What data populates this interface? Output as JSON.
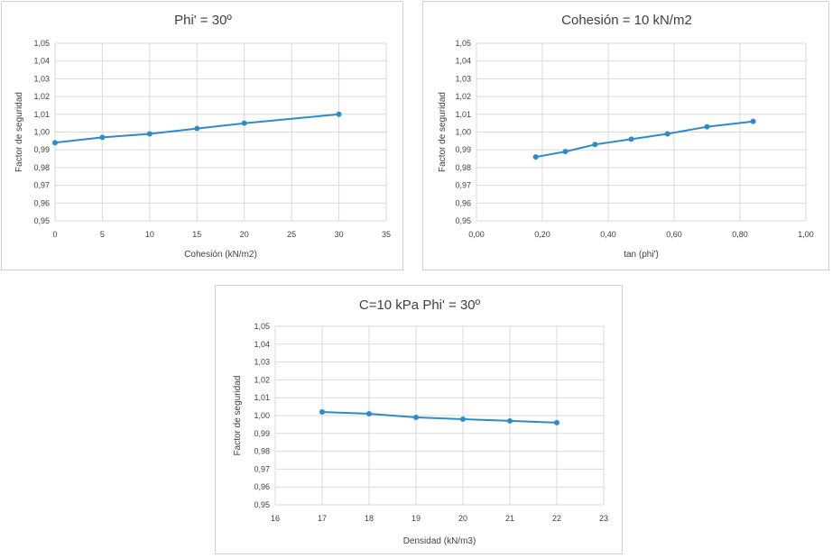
{
  "chart_data": [
    {
      "type": "line",
      "title": "Phi' = 30º",
      "xlabel": "Cohesión (kN/m2)",
      "ylabel": "Factor de seguridad",
      "xlim": [
        0,
        35
      ],
      "ylim": [
        0.95,
        1.05
      ],
      "xticks": [
        "0",
        "5",
        "10",
        "15",
        "20",
        "25",
        "30",
        "35"
      ],
      "yticks": [
        "0,95",
        "0,96",
        "0,97",
        "0,98",
        "0,99",
        "1,00",
        "1,01",
        "1,02",
        "1,03",
        "1,04",
        "1,05"
      ],
      "grid": true,
      "series": [
        {
          "x": [
            0,
            5,
            10,
            15,
            20,
            30
          ],
          "y": [
            0.994,
            0.997,
            0.999,
            1.002,
            1.005,
            1.01
          ]
        }
      ]
    },
    {
      "type": "line",
      "title": "Cohesión = 10 kN/m2",
      "xlabel": "tan (phi')",
      "ylabel": "Factor de seguridad",
      "xlim": [
        0,
        1
      ],
      "ylim": [
        0.95,
        1.05
      ],
      "xticks": [
        "0,00",
        "0,20",
        "0,40",
        "0,60",
        "0,80",
        "1,00"
      ],
      "yticks": [
        "0,95",
        "0,96",
        "0,97",
        "0,98",
        "0,99",
        "1,00",
        "1,01",
        "1,02",
        "1,03",
        "1,04",
        "1,05"
      ],
      "grid": true,
      "series": [
        {
          "x": [
            0.18,
            0.27,
            0.36,
            0.47,
            0.58,
            0.7,
            0.84
          ],
          "y": [
            0.986,
            0.989,
            0.993,
            0.996,
            0.999,
            1.003,
            1.006
          ]
        }
      ]
    },
    {
      "type": "line",
      "title": "C=10 kPa  Phi' = 30º",
      "xlabel": "Densidad (kN/m3)",
      "ylabel": "Factor de seguridad",
      "xlim": [
        16,
        23
      ],
      "ylim": [
        0.95,
        1.05
      ],
      "xticks": [
        "16",
        "17",
        "18",
        "19",
        "20",
        "21",
        "22",
        "23"
      ],
      "yticks": [
        "0,95",
        "0,96",
        "0,97",
        "0,98",
        "0,99",
        "1,00",
        "1,01",
        "1,02",
        "1,03",
        "1,04",
        "1,05"
      ],
      "grid": true,
      "series": [
        {
          "x": [
            17,
            18,
            19,
            20,
            21,
            22
          ],
          "y": [
            1.002,
            1.001,
            0.999,
            0.998,
            0.997,
            0.996
          ]
        }
      ]
    }
  ],
  "colors": {
    "series": "#2e8bc9",
    "grid": "#d9d9d9",
    "text": "#404040",
    "border": "#d0d0d0"
  }
}
